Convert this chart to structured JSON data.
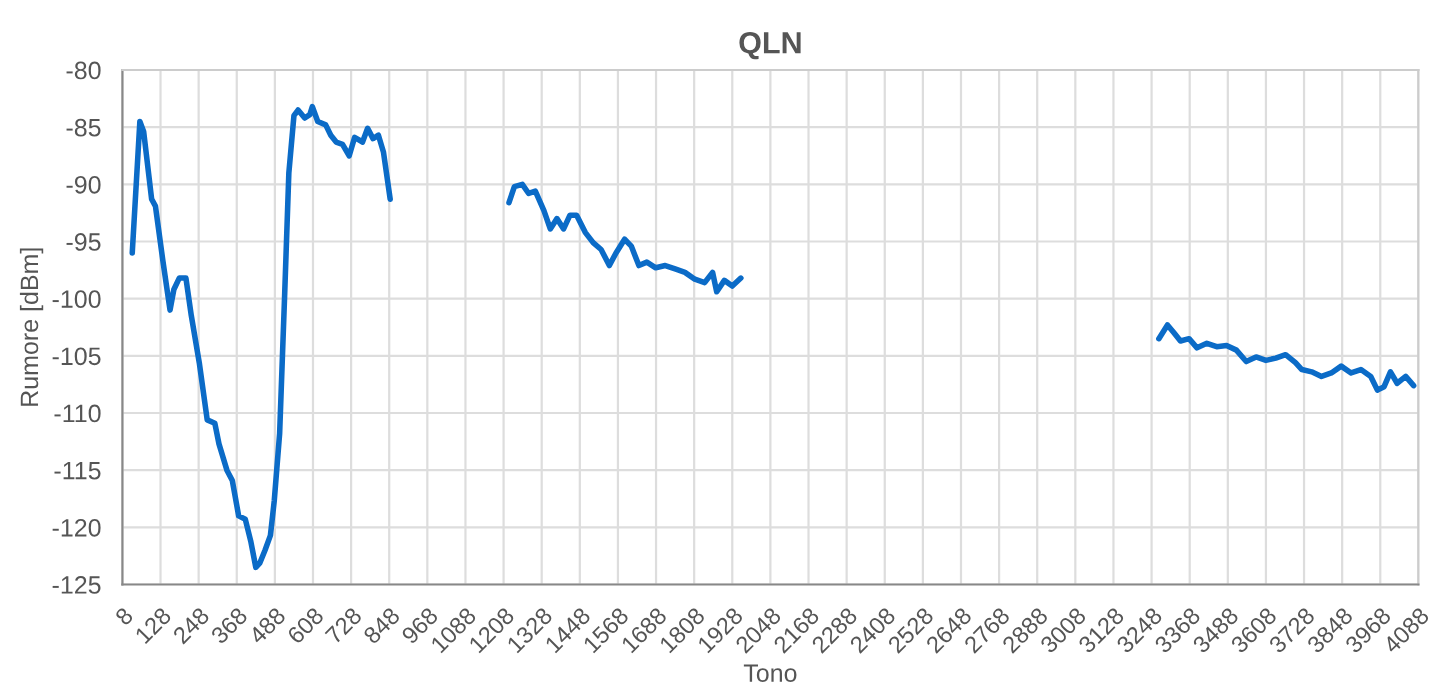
{
  "chart_data": {
    "type": "line",
    "title": "QLN",
    "xlabel": "Tono",
    "ylabel": "Rumore [dBm]",
    "xlim": [
      8,
      4088
    ],
    "xticks": [
      8,
      128,
      248,
      368,
      488,
      608,
      728,
      848,
      968,
      1088,
      1208,
      1328,
      1448,
      1568,
      1688,
      1808,
      1928,
      2048,
      2168,
      2288,
      2408,
      2528,
      2648,
      2768,
      2888,
      3008,
      3128,
      3248,
      3368,
      3488,
      3608,
      3728,
      3848,
      3968,
      4088
    ],
    "ylim": [
      -125,
      -80
    ],
    "yticks": [
      -125,
      -120,
      -115,
      -110,
      -105,
      -100,
      -95,
      -90,
      -85,
      -80
    ],
    "grid": true,
    "legend": false,
    "marker": "none",
    "line_style": "solid",
    "series": [
      {
        "color": "#0b6bc7",
        "x": [
          39,
          63,
          75,
          100,
          112,
          135,
          158,
          170,
          187,
          208,
          225,
          250,
          275,
          299,
          312,
          337,
          354,
          374,
          395,
          412,
          428,
          441,
          457,
          474,
          486,
          503,
          519,
          532,
          548,
          561,
          582,
          598,
          606,
          623,
          648,
          664,
          681,
          701,
          722,
          739,
          764,
          780,
          797,
          814,
          830,
          851,
          1000,
          1225,
          1242,
          1267,
          1287,
          1308,
          1335,
          1355,
          1376,
          1397,
          1417,
          1438,
          1465,
          1490,
          1515,
          1541,
          1562,
          1589,
          1610,
          1634,
          1659,
          1687,
          1717,
          1748,
          1779,
          1810,
          1841,
          1866,
          1879,
          1903,
          1928,
          1955,
          2600,
          3271,
          3298,
          3319,
          3339,
          3366,
          3391,
          3422,
          3453,
          3484,
          3515,
          3546,
          3577,
          3608,
          3639,
          3670,
          3701,
          3721,
          3752,
          3783,
          3814,
          3845,
          3876,
          3907,
          3938,
          3959,
          3980,
          4000,
          4021,
          4048,
          4073
        ],
        "values": [
          -96.0,
          -84.5,
          -85.4,
          -91.3,
          -91.9,
          -96.6,
          -101,
          -99.2,
          -98.2,
          -98.2,
          -101.5,
          -105.6,
          -110.6,
          -110.9,
          -112.7,
          -115,
          -115.9,
          -119,
          -119.3,
          -121.2,
          -123.5,
          -123.1,
          -122,
          -120.7,
          -117.7,
          -111.8,
          -99.5,
          -89,
          -84,
          -83.5,
          -84.2,
          -83.9,
          -83.2,
          -84.5,
          -84.8,
          -85.7,
          -86.3,
          -86.5,
          -87.5,
          -85.9,
          -86.3,
          -85.1,
          -86,
          -85.7,
          -87.2,
          -91.3,
          null,
          -91.6,
          -90.2,
          -90.0,
          -90.8,
          -90.6,
          -92.3,
          -93.9,
          -93.0,
          -93.9,
          -92.7,
          -92.7,
          -94.2,
          -95.1,
          -95.7,
          -97.1,
          -96.0,
          -94.8,
          -95.4,
          -97.1,
          -96.8,
          -97.3,
          -97.1,
          -97.4,
          -97.7,
          -98.3,
          -98.6,
          -97.7,
          -99.4,
          -98.4,
          -98.9,
          -98.2,
          null,
          -103.5,
          -102.3,
          -103.0,
          -103.7,
          -103.5,
          -104.3,
          -103.9,
          -104.2,
          -104.1,
          -104.5,
          -105.5,
          -105.1,
          -105.4,
          -105.2,
          -104.9,
          -105.6,
          -106.2,
          -106.4,
          -106.8,
          -106.5,
          -105.9,
          -106.5,
          -106.2,
          -106.8,
          -108.0,
          -107.7,
          -106.4,
          -107.4,
          -106.8,
          -107.6
        ]
      }
    ]
  }
}
